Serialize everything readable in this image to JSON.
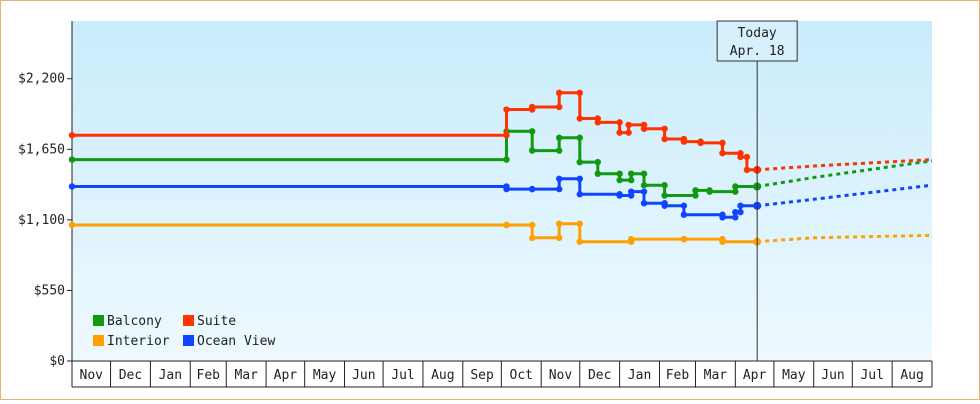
{
  "chart_data": {
    "type": "line",
    "title": "",
    "xlabel": "",
    "ylabel": "",
    "ylim": [
      0,
      2650
    ],
    "y_ticks": [
      0,
      550,
      1100,
      1650,
      2200
    ],
    "y_tick_labels": [
      "$0",
      "$550",
      "$1,100",
      "$1,650",
      "$2,200"
    ],
    "x_range": [
      "2012-11-01",
      "2014-09-01"
    ],
    "months": [
      "Nov",
      "Dec",
      "Jan",
      "Feb",
      "Mar",
      "Apr",
      "May",
      "Jun",
      "Jul",
      "Aug",
      "Sep",
      "Oct",
      "Nov",
      "Dec",
      "Jan",
      "Feb",
      "Mar",
      "Apr",
      "May",
      "Jun",
      "Jul",
      "Aug"
    ],
    "grid": false,
    "legend_position": "bottom-left",
    "today": {
      "date": "2014-04-18",
      "line1": "Today",
      "line2": "Apr. 18"
    },
    "series": [
      {
        "name": "Balcony",
        "color": "#119911",
        "points": [
          [
            "2012-11-01",
            1570
          ],
          [
            "2013-10-05",
            1570
          ],
          [
            "2013-10-05",
            1790
          ],
          [
            "2013-10-25",
            1790
          ],
          [
            "2013-10-25",
            1640
          ],
          [
            "2013-11-15",
            1640
          ],
          [
            "2013-11-15",
            1740
          ],
          [
            "2013-12-01",
            1740
          ],
          [
            "2013-12-01",
            1550
          ],
          [
            "2013-12-15",
            1550
          ],
          [
            "2013-12-15",
            1460
          ],
          [
            "2014-01-01",
            1460
          ],
          [
            "2014-01-01",
            1410
          ],
          [
            "2014-01-10",
            1410
          ],
          [
            "2014-01-10",
            1460
          ],
          [
            "2014-01-20",
            1460
          ],
          [
            "2014-01-20",
            1370
          ],
          [
            "2014-02-05",
            1370
          ],
          [
            "2014-02-05",
            1290
          ],
          [
            "2014-03-01",
            1290
          ],
          [
            "2014-03-01",
            1330
          ],
          [
            "2014-03-12",
            1330
          ],
          [
            "2014-03-12",
            1320
          ],
          [
            "2014-04-01",
            1320
          ],
          [
            "2014-04-01",
            1360
          ],
          [
            "2014-04-18",
            1360
          ]
        ],
        "forecast": [
          [
            "2014-04-18",
            1360
          ],
          [
            "2014-06-01",
            1430
          ],
          [
            "2014-09-01",
            1560
          ]
        ]
      },
      {
        "name": "Suite",
        "color": "#ff3300",
        "points": [
          [
            "2012-11-01",
            1760
          ],
          [
            "2013-10-05",
            1760
          ],
          [
            "2013-10-05",
            1960
          ],
          [
            "2013-10-25",
            1960
          ],
          [
            "2013-10-25",
            1980
          ],
          [
            "2013-11-15",
            1980
          ],
          [
            "2013-11-15",
            2090
          ],
          [
            "2013-12-01",
            2090
          ],
          [
            "2013-12-01",
            1890
          ],
          [
            "2013-12-15",
            1890
          ],
          [
            "2013-12-15",
            1860
          ],
          [
            "2014-01-01",
            1860
          ],
          [
            "2014-01-01",
            1780
          ],
          [
            "2014-01-08",
            1780
          ],
          [
            "2014-01-08",
            1840
          ],
          [
            "2014-01-20",
            1840
          ],
          [
            "2014-01-20",
            1810
          ],
          [
            "2014-02-05",
            1810
          ],
          [
            "2014-02-05",
            1730
          ],
          [
            "2014-02-20",
            1730
          ],
          [
            "2014-02-20",
            1710
          ],
          [
            "2014-03-05",
            1710
          ],
          [
            "2014-03-05",
            1700
          ],
          [
            "2014-03-22",
            1700
          ],
          [
            "2014-03-22",
            1620
          ],
          [
            "2014-04-05",
            1620
          ],
          [
            "2014-04-05",
            1590
          ],
          [
            "2014-04-10",
            1590
          ],
          [
            "2014-04-10",
            1490
          ],
          [
            "2014-04-18",
            1490
          ]
        ],
        "forecast": [
          [
            "2014-04-18",
            1490
          ],
          [
            "2014-06-01",
            1520
          ],
          [
            "2014-09-01",
            1570
          ]
        ]
      },
      {
        "name": "Interior",
        "color": "#ffa000",
        "points": [
          [
            "2012-11-01",
            1060
          ],
          [
            "2013-10-05",
            1060
          ],
          [
            "2013-10-05",
            1060
          ],
          [
            "2013-10-25",
            1060
          ],
          [
            "2013-10-25",
            960
          ],
          [
            "2013-11-15",
            960
          ],
          [
            "2013-11-15",
            1070
          ],
          [
            "2013-12-01",
            1070
          ],
          [
            "2013-12-01",
            930
          ],
          [
            "2014-01-10",
            930
          ],
          [
            "2014-01-10",
            950
          ],
          [
            "2014-02-20",
            950
          ],
          [
            "2014-02-20",
            950
          ],
          [
            "2014-03-22",
            950
          ],
          [
            "2014-03-22",
            930
          ],
          [
            "2014-04-18",
            930
          ]
        ],
        "forecast": [
          [
            "2014-04-18",
            930
          ],
          [
            "2014-06-01",
            960
          ],
          [
            "2014-09-01",
            980
          ]
        ]
      },
      {
        "name": "Ocean View",
        "color": "#1144ff",
        "points": [
          [
            "2012-11-01",
            1360
          ],
          [
            "2013-10-05",
            1360
          ],
          [
            "2013-10-05",
            1340
          ],
          [
            "2013-10-25",
            1340
          ],
          [
            "2013-10-25",
            1340
          ],
          [
            "2013-11-15",
            1340
          ],
          [
            "2013-11-15",
            1420
          ],
          [
            "2013-12-01",
            1420
          ],
          [
            "2013-12-01",
            1300
          ],
          [
            "2014-01-01",
            1300
          ],
          [
            "2014-01-01",
            1290
          ],
          [
            "2014-01-10",
            1290
          ],
          [
            "2014-01-10",
            1320
          ],
          [
            "2014-01-20",
            1320
          ],
          [
            "2014-01-20",
            1230
          ],
          [
            "2014-02-05",
            1230
          ],
          [
            "2014-02-05",
            1210
          ],
          [
            "2014-02-20",
            1210
          ],
          [
            "2014-02-20",
            1140
          ],
          [
            "2014-03-22",
            1140
          ],
          [
            "2014-03-22",
            1120
          ],
          [
            "2014-04-01",
            1120
          ],
          [
            "2014-04-01",
            1160
          ],
          [
            "2014-04-05",
            1160
          ],
          [
            "2014-04-05",
            1210
          ],
          [
            "2014-04-18",
            1210
          ]
        ],
        "forecast": [
          [
            "2014-04-18",
            1210
          ],
          [
            "2014-06-01",
            1260
          ],
          [
            "2014-09-01",
            1370
          ]
        ]
      }
    ]
  }
}
